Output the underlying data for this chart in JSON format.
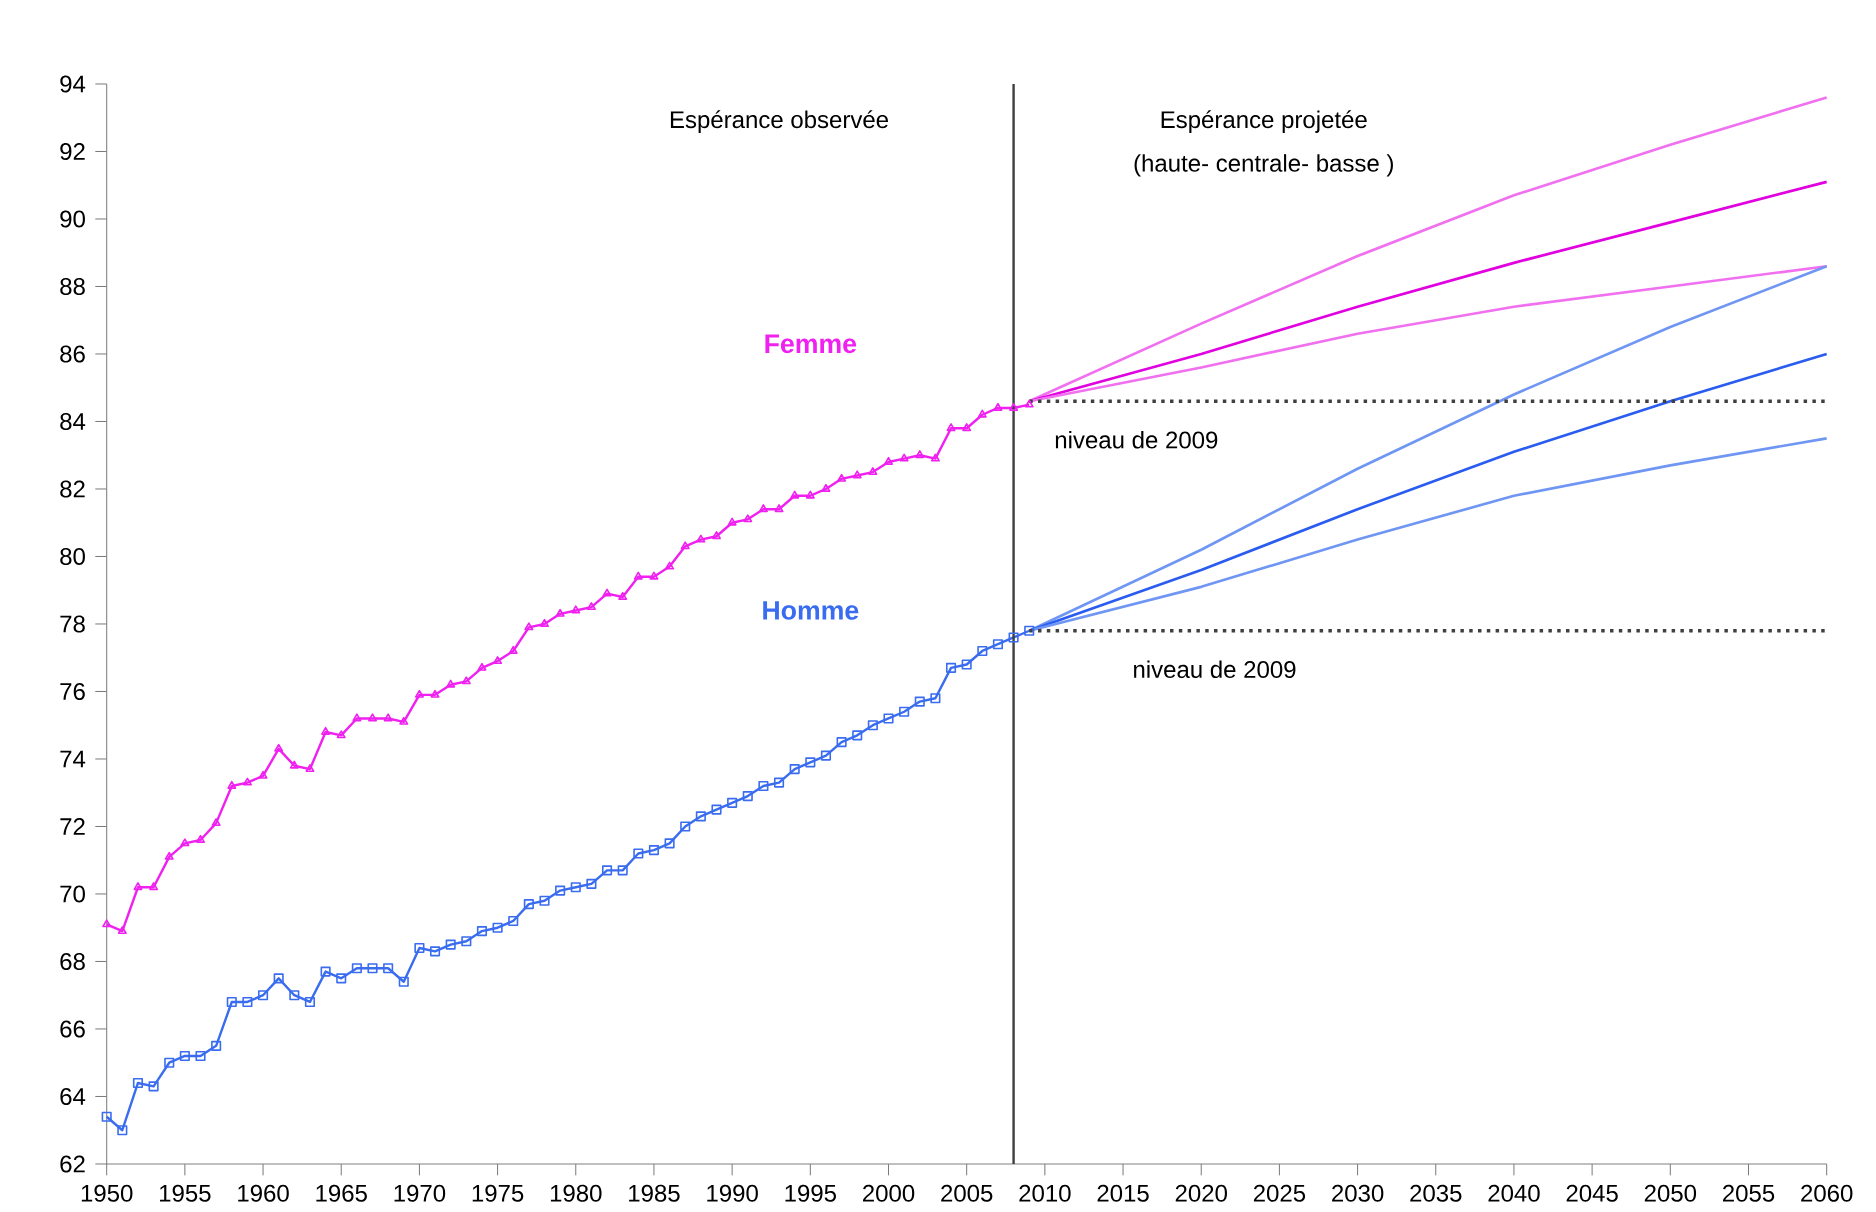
{
  "chart_data": {
    "type": "line",
    "xlim": [
      1950,
      2060
    ],
    "xticks": [
      1950,
      1955,
      1960,
      1965,
      1970,
      1975,
      1980,
      1985,
      1990,
      1995,
      2000,
      2005,
      2010,
      2015,
      2020,
      2025,
      2030,
      2035,
      2040,
      2045,
      2050,
      2055,
      2060
    ],
    "ylim": [
      62,
      94
    ],
    "yticks": [
      62,
      64,
      66,
      68,
      70,
      72,
      74,
      76,
      78,
      80,
      82,
      84,
      86,
      88,
      90,
      92,
      94
    ],
    "grid": false,
    "legend": false,
    "annotations": [
      "Espérance observée",
      "Espérance projetée",
      "(haute- centrale- basse )"
    ],
    "ref_lines": [
      {
        "axis": "x",
        "value": 2008,
        "color": "#404040",
        "line_style": "solid"
      },
      {
        "axis": "y",
        "value": 84.6,
        "label": "niveau de 2009",
        "color": "#404040",
        "line_style": "dotted"
      },
      {
        "axis": "y",
        "value": 77.8,
        "label": "niveau de 2009",
        "color": "#404040",
        "line_style": "dotted"
      }
    ],
    "series": [
      {
        "name": "Femme",
        "color": "#f020f0",
        "marker": "triangle",
        "x": [
          1950,
          1951,
          1952,
          1953,
          1954,
          1955,
          1956,
          1957,
          1958,
          1959,
          1960,
          1961,
          1962,
          1963,
          1964,
          1965,
          1966,
          1967,
          1968,
          1969,
          1970,
          1971,
          1972,
          1973,
          1974,
          1975,
          1976,
          1977,
          1978,
          1979,
          1980,
          1981,
          1982,
          1983,
          1984,
          1985,
          1986,
          1987,
          1988,
          1989,
          1990,
          1991,
          1992,
          1993,
          1994,
          1995,
          1996,
          1997,
          1998,
          1999,
          2000,
          2001,
          2002,
          2003,
          2004,
          2005,
          2006,
          2007,
          2008,
          2009
        ],
        "values": [
          69.1,
          68.9,
          70.2,
          70.2,
          71.1,
          71.5,
          71.6,
          72.1,
          73.2,
          73.3,
          73.5,
          74.3,
          73.8,
          73.7,
          74.8,
          74.7,
          75.2,
          75.2,
          75.2,
          75.1,
          75.9,
          75.9,
          76.2,
          76.3,
          76.7,
          76.9,
          77.2,
          77.9,
          78.0,
          78.3,
          78.4,
          78.5,
          78.9,
          78.8,
          79.4,
          79.4,
          79.7,
          80.3,
          80.5,
          80.6,
          81.0,
          81.1,
          81.4,
          81.4,
          81.8,
          81.8,
          82.0,
          82.3,
          82.4,
          82.5,
          82.8,
          82.9,
          83.0,
          82.9,
          83.8,
          83.8,
          84.2,
          84.4,
          84.4,
          84.5
        ]
      },
      {
        "name": "Homme",
        "color": "#3a6cf0",
        "marker": "square",
        "x": [
          1950,
          1951,
          1952,
          1953,
          1954,
          1955,
          1956,
          1957,
          1958,
          1959,
          1960,
          1961,
          1962,
          1963,
          1964,
          1965,
          1966,
          1967,
          1968,
          1969,
          1970,
          1971,
          1972,
          1973,
          1974,
          1975,
          1976,
          1977,
          1978,
          1979,
          1980,
          1981,
          1982,
          1983,
          1984,
          1985,
          1986,
          1987,
          1988,
          1989,
          1990,
          1991,
          1992,
          1993,
          1994,
          1995,
          1996,
          1997,
          1998,
          1999,
          2000,
          2001,
          2002,
          2003,
          2004,
          2005,
          2006,
          2007,
          2008,
          2009
        ],
        "values": [
          63.4,
          63.0,
          64.4,
          64.3,
          65.0,
          65.2,
          65.2,
          65.5,
          66.8,
          66.8,
          67.0,
          67.5,
          67.0,
          66.8,
          67.7,
          67.5,
          67.8,
          67.8,
          67.8,
          67.4,
          68.4,
          68.3,
          68.5,
          68.6,
          68.9,
          69.0,
          69.2,
          69.7,
          69.8,
          70.1,
          70.2,
          70.3,
          70.7,
          70.7,
          71.2,
          71.3,
          71.5,
          72.0,
          72.3,
          72.5,
          72.7,
          72.9,
          73.2,
          73.3,
          73.7,
          73.9,
          74.1,
          74.5,
          74.7,
          75.0,
          75.2,
          75.4,
          75.7,
          75.8,
          76.7,
          76.8,
          77.2,
          77.4,
          77.6,
          77.8
        ]
      },
      {
        "color": "#f070f0",
        "marker": "none",
        "x": [
          2009,
          2020,
          2030,
          2040,
          2050,
          2060
        ],
        "values": [
          84.6,
          86.9,
          88.9,
          90.7,
          92.2,
          93.6
        ]
      },
      {
        "color": "#e000e0",
        "marker": "none",
        "x": [
          2009,
          2020,
          2030,
          2040,
          2050,
          2060
        ],
        "values": [
          84.6,
          86.0,
          87.4,
          88.7,
          89.9,
          91.1
        ]
      },
      {
        "color": "#f070f0",
        "marker": "none",
        "x": [
          2009,
          2020,
          2030,
          2040,
          2050,
          2060
        ],
        "values": [
          84.6,
          85.6,
          86.6,
          87.4,
          88.0,
          88.6
        ]
      },
      {
        "color": "#7096f4",
        "marker": "none",
        "x": [
          2009,
          2020,
          2030,
          2040,
          2050,
          2060
        ],
        "values": [
          77.8,
          80.2,
          82.6,
          84.8,
          86.8,
          88.6
        ]
      },
      {
        "color": "#2a5cf0",
        "marker": "none",
        "x": [
          2009,
          2020,
          2030,
          2040,
          2050,
          2060
        ],
        "values": [
          77.8,
          79.6,
          81.4,
          83.1,
          84.6,
          86.0
        ]
      },
      {
        "color": "#7096f4",
        "marker": "none",
        "x": [
          2009,
          2020,
          2030,
          2040,
          2050,
          2060
        ],
        "values": [
          77.8,
          79.1,
          80.5,
          81.8,
          82.7,
          83.5
        ]
      }
    ]
  }
}
